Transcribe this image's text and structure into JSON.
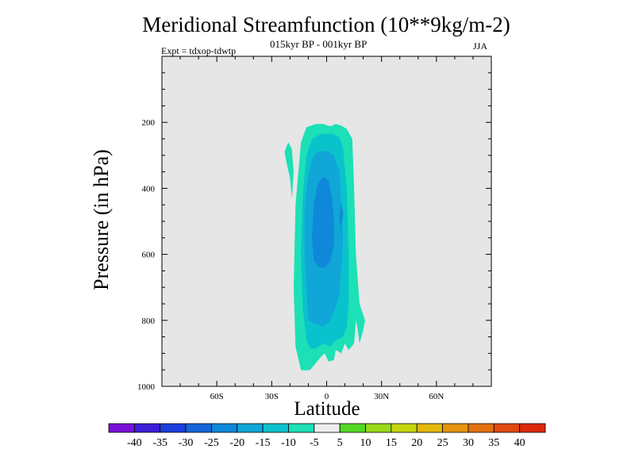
{
  "chart_data": {
    "type": "contour",
    "title": "Meridional Streamfunction (10**9kg/m-2)",
    "subtitle": "015kyr BP - 001kyr BP",
    "experiment": "Expt = tdxop-tdwtp",
    "season": "JJA",
    "xlabel": "Latitude",
    "ylabel": "Pressure (in hPa)",
    "xlim": [
      -90,
      90
    ],
    "ylim": [
      1000,
      0
    ],
    "x_ticks": [
      {
        "value": -60,
        "label": "60S"
      },
      {
        "value": -30,
        "label": "30S"
      },
      {
        "value": 0,
        "label": "0"
      },
      {
        "value": 30,
        "label": "30N"
      },
      {
        "value": 60,
        "label": "60N"
      }
    ],
    "y_ticks": [
      {
        "value": 200,
        "label": "200"
      },
      {
        "value": 400,
        "label": "400"
      },
      {
        "value": 600,
        "label": "600"
      },
      {
        "value": 800,
        "label": "800"
      },
      {
        "value": 1000,
        "label": "1000"
      }
    ],
    "background_color": "#e6e6e6",
    "colorbar": {
      "levels": [
        "-40",
        "-35",
        "-30",
        "-25",
        "-20",
        "-15",
        "-10",
        "-5",
        "5",
        "10",
        "15",
        "20",
        "25",
        "30",
        "35",
        "40"
      ],
      "colors": [
        "#7a10d8",
        "#3c1ed8",
        "#1a3fdc",
        "#1565d8",
        "#0f88da",
        "#10a6d8",
        "#0ac2cc",
        "#1ce0b6",
        "#ededed",
        "#55d825",
        "#98da18",
        "#c6d50c",
        "#e4b80a",
        "#e49510",
        "#e27010",
        "#e04a10",
        "#dc2a0a"
      ]
    },
    "contour_regions": [
      {
        "name": "cell-minus5-main",
        "level": -5,
        "color": "#1ce0b6",
        "outline": [
          [
            -14,
            950
          ],
          [
            -17,
            880
          ],
          [
            -18,
            700
          ],
          [
            -17,
            450
          ],
          [
            -14,
            260
          ],
          [
            -11,
            215
          ],
          [
            -6,
            205
          ],
          [
            -2,
            205
          ],
          [
            2,
            212
          ],
          [
            5,
            205
          ],
          [
            8,
            210
          ],
          [
            11,
            220
          ],
          [
            14,
            250
          ],
          [
            15,
            400
          ],
          [
            16,
            600
          ],
          [
            18,
            750
          ],
          [
            21,
            800
          ],
          [
            20,
            830
          ],
          [
            18,
            870
          ],
          [
            17,
            830
          ],
          [
            16,
            800
          ],
          [
            15,
            870
          ],
          [
            12,
            890
          ],
          [
            10,
            870
          ],
          [
            8,
            900
          ],
          [
            5,
            890
          ],
          [
            4,
            920
          ],
          [
            1,
            925
          ],
          [
            -1,
            900
          ],
          [
            -3,
            910
          ],
          [
            -6,
            930
          ],
          [
            -9,
            950
          ],
          [
            -12,
            952
          ]
        ]
      },
      {
        "name": "cell-minus5-island",
        "level": -5,
        "color": "#1ce0b6",
        "outline": [
          [
            -23,
            290
          ],
          [
            -21,
            260
          ],
          [
            -19,
            280
          ],
          [
            -18,
            350
          ],
          [
            -19,
            430
          ],
          [
            -20,
            370
          ],
          [
            -22,
            320
          ]
        ]
      },
      {
        "name": "cell-minus10",
        "level": -10,
        "color": "#0ac2cc",
        "outline": [
          [
            -11,
            860
          ],
          [
            -13,
            760
          ],
          [
            -14,
            600
          ],
          [
            -13,
            420
          ],
          [
            -11,
            300
          ],
          [
            -8,
            250
          ],
          [
            -3,
            235
          ],
          [
            3,
            235
          ],
          [
            7,
            245
          ],
          [
            9,
            280
          ],
          [
            11,
            400
          ],
          [
            12,
            600
          ],
          [
            12,
            750
          ],
          [
            11,
            820
          ],
          [
            9,
            850
          ],
          [
            5,
            860
          ],
          [
            2,
            880
          ],
          [
            -2,
            870
          ],
          [
            -6,
            885
          ],
          [
            -9,
            885
          ]
        ]
      },
      {
        "name": "cell-minus15",
        "level": -15,
        "color": "#10a6d8",
        "outline": [
          [
            -10,
            800
          ],
          [
            -11,
            700
          ],
          [
            -12,
            600
          ],
          [
            -12,
            470
          ],
          [
            -10,
            360
          ],
          [
            -8,
            310
          ],
          [
            -5,
            290
          ],
          [
            -2,
            285
          ],
          [
            1,
            290
          ],
          [
            4,
            300
          ],
          [
            7,
            350
          ],
          [
            8,
            450
          ],
          [
            9,
            550
          ],
          [
            8,
            650
          ],
          [
            7,
            720
          ],
          [
            5,
            760
          ],
          [
            2,
            800
          ],
          [
            -2,
            820
          ],
          [
            -6,
            810
          ]
        ]
      },
      {
        "name": "cell-minus20",
        "level": -20,
        "color": "#0f88da",
        "outline": [
          [
            -7,
            620
          ],
          [
            -8,
            550
          ],
          [
            -7,
            450
          ],
          [
            -5,
            390
          ],
          [
            -2,
            365
          ],
          [
            1,
            375
          ],
          [
            3,
            430
          ],
          [
            4,
            500
          ],
          [
            4,
            570
          ],
          [
            2,
            620
          ],
          [
            -1,
            640
          ],
          [
            -4,
            640
          ]
        ]
      },
      {
        "name": "cell-minus20-patch",
        "level": -20,
        "color": "#0f88da",
        "outline": [
          [
            8,
            445
          ],
          [
            9,
            475
          ],
          [
            8,
            520
          ],
          [
            7,
            490
          ]
        ]
      }
    ]
  }
}
